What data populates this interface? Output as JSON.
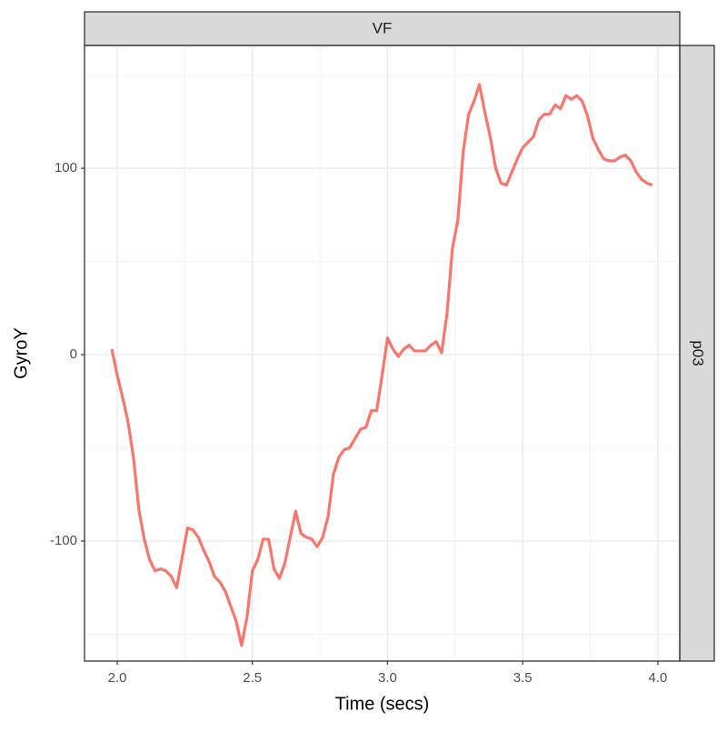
{
  "chart_data": {
    "type": "line",
    "facet_top": "VF",
    "facet_right": "p03",
    "x_label": "Time (secs)",
    "y_label": "GyroY",
    "xlim": [
      1.879,
      4.081
    ],
    "ylim": [
      -164.4,
      165.9
    ],
    "xticks": [
      {
        "value": 2.0,
        "label": "2.0"
      },
      {
        "value": 2.5,
        "label": "2.5"
      },
      {
        "value": 3.0,
        "label": "3.0"
      },
      {
        "value": 3.5,
        "label": "3.5"
      },
      {
        "value": 4.0,
        "label": "4.0"
      }
    ],
    "yticks": [
      -100,
      0,
      100
    ],
    "xminor": [
      2.25,
      2.75,
      3.25,
      3.75
    ],
    "yminor": [
      -150,
      -50,
      50,
      150
    ],
    "grid": true,
    "x": [
      1.98,
      2.0,
      2.02,
      2.04,
      2.06,
      2.08,
      2.1,
      2.12,
      2.14,
      2.16,
      2.18,
      2.2,
      2.22,
      2.24,
      2.26,
      2.28,
      2.3,
      2.32,
      2.34,
      2.36,
      2.38,
      2.4,
      2.42,
      2.44,
      2.46,
      2.48,
      2.5,
      2.52,
      2.54,
      2.56,
      2.58,
      2.6,
      2.62,
      2.64,
      2.66,
      2.68,
      2.7,
      2.72,
      2.74,
      2.76,
      2.78,
      2.8,
      2.82,
      2.84,
      2.86,
      2.88,
      2.9,
      2.92,
      2.94,
      2.96,
      2.98,
      3.0,
      3.02,
      3.04,
      3.06,
      3.08,
      3.1,
      3.12,
      3.14,
      3.16,
      3.18,
      3.2,
      3.22,
      3.24,
      3.26,
      3.28,
      3.3,
      3.32,
      3.34,
      3.36,
      3.38,
      3.4,
      3.42,
      3.44,
      3.46,
      3.48,
      3.5,
      3.52,
      3.54,
      3.56,
      3.58,
      3.6,
      3.62,
      3.64,
      3.66,
      3.68,
      3.7,
      3.72,
      3.74,
      3.76,
      3.78,
      3.8,
      3.82,
      3.84,
      3.86,
      3.88,
      3.9,
      3.92,
      3.94,
      3.96,
      3.98
    ],
    "series": [
      {
        "color": "#F8766D",
        "values": [
          3,
          -11,
          -23,
          -36,
          -55,
          -83,
          -99,
          -110,
          -116,
          -115,
          -116,
          -119,
          -125,
          -109,
          -93,
          -94,
          -98,
          -105,
          -111,
          -119,
          -122,
          -127,
          -135,
          -143,
          -156,
          -141,
          -116,
          -110,
          -99,
          -99,
          -115,
          -120,
          -112,
          -98,
          -84,
          -96,
          -98,
          -99,
          -103,
          -98,
          -87,
          -64,
          -55,
          -51,
          -50,
          -45,
          -40,
          -39,
          -30,
          -30,
          -11,
          9,
          3,
          -1,
          3,
          5,
          2,
          2,
          2,
          5,
          7,
          1,
          22,
          57,
          72,
          109,
          129,
          136,
          145,
          130,
          117,
          100,
          92,
          91,
          98,
          105,
          111,
          114,
          117,
          126,
          129,
          129,
          134,
          132,
          139,
          137,
          139,
          136,
          128,
          116,
          110,
          105,
          104,
          104,
          106,
          107,
          104,
          98,
          94,
          92,
          91
        ]
      }
    ]
  }
}
